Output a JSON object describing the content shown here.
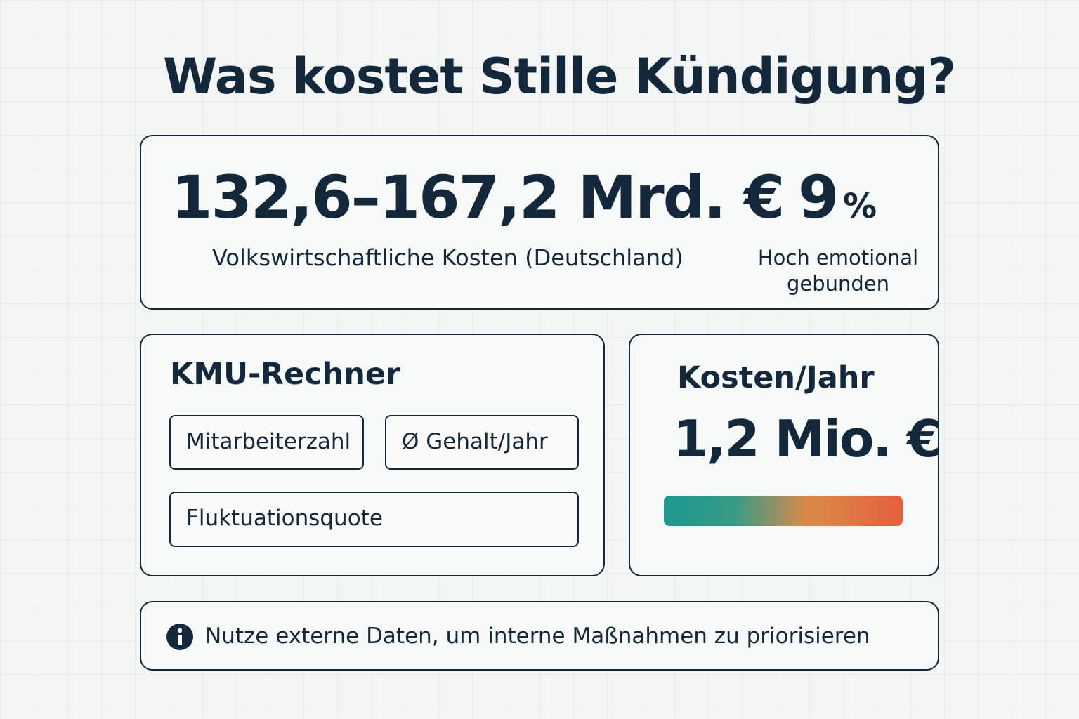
{
  "header": {
    "title": "Was kostet Stille Kündigung?"
  },
  "summary": {
    "cost_range": "132,6–167,2 Mrd. €",
    "cost_label": "Volkswirtschaftliche Kosten (Deutschland)",
    "share_number": "9",
    "share_unit": "%",
    "share_label_line1": "Hoch emotional",
    "share_label_line2": "gebunden"
  },
  "calculator": {
    "title": "KMU-Rechner",
    "fields": [
      "Mitarbeiterzahl",
      "Ø Gehalt/Jahr",
      "Fluktuationsquote"
    ]
  },
  "result": {
    "title": "Kosten/Jahr",
    "value": "1,2 Mio. €"
  },
  "footer": {
    "note": "Nutze externe Daten, um interne Maßnahmen zu priorisieren"
  }
}
